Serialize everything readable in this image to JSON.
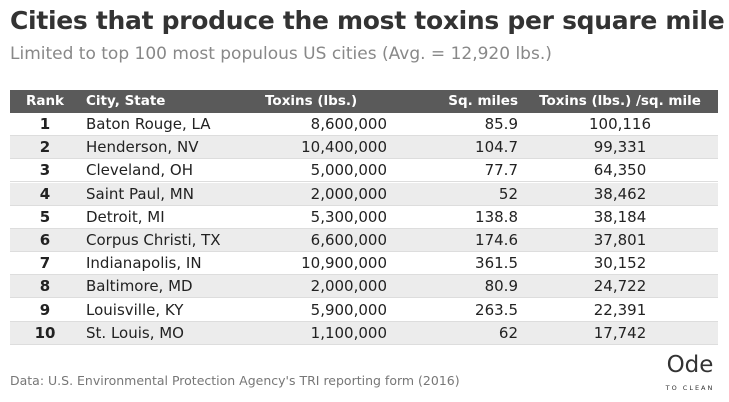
{
  "header": {
    "title": "Cities that produce the most toxins per square mile",
    "subtitle": "Limited to top 100 most populous US cities (Avg. = 12,920 lbs.)"
  },
  "table": {
    "columns": [
      "Rank",
      "City, State",
      "Toxins (lbs.)",
      "Sq. miles",
      "Toxins (lbs.) /sq. mile"
    ],
    "rows": [
      [
        "1",
        "Baton Rouge, LA",
        "8,600,000",
        "85.9",
        "100,116"
      ],
      [
        "2",
        "Henderson, NV",
        "10,400,000",
        "104.7",
        "99,331"
      ],
      [
        "3",
        "Cleveland, OH",
        "5,000,000",
        "77.7",
        "64,350"
      ],
      [
        "4",
        "Saint Paul, MN",
        "2,000,000",
        "52",
        "38,462"
      ],
      [
        "5",
        "Detroit, MI",
        "5,300,000",
        "138.8",
        "38,184"
      ],
      [
        "6",
        "Corpus Christi, TX",
        "6,600,000",
        "174.6",
        "37,801"
      ],
      [
        "7",
        "Indianapolis, IN",
        "10,900,000",
        "361.5",
        "30,152"
      ],
      [
        "8",
        "Baltimore, MD",
        "2,000,000",
        "80.9",
        "24,722"
      ],
      [
        "9",
        "Louisville, KY",
        "5,900,000",
        "263.5",
        "22,391"
      ],
      [
        "10",
        "St. Louis, MO",
        "1,100,000",
        "62",
        "17,742"
      ]
    ]
  },
  "footer": {
    "source": "Data: U.S. Environmental Protection Agency's TRI reporting form (2016)"
  },
  "logo": {
    "name": "Ode",
    "tagline": "TO CLEAN"
  }
}
